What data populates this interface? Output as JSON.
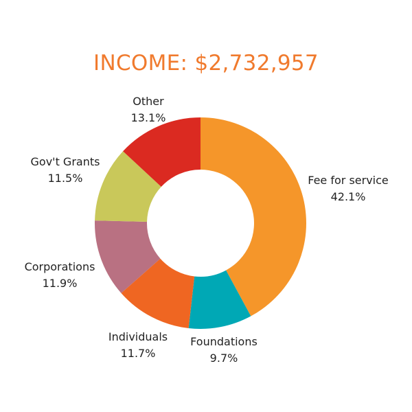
{
  "chart_data": {
    "type": "pie",
    "title": "INCOME: $2,732,957",
    "title_color": "#F07A2D",
    "donut": true,
    "start": "top",
    "direction": "clockwise",
    "slices": [
      {
        "name": "Fee for service",
        "value": 42.1,
        "label": "42.1%",
        "color": "#F5962A"
      },
      {
        "name": "Foundations",
        "value": 9.7,
        "label": "9.7%",
        "color": "#00A8B5"
      },
      {
        "name": "Individuals",
        "value": 11.7,
        "label": "11.7%",
        "color": "#EF6622"
      },
      {
        "name": "Corporations",
        "value": 11.9,
        "label": "11.9%",
        "color": "#B97182"
      },
      {
        "name": "Gov't Grants",
        "value": 11.5,
        "label": "11.5%",
        "color": "#C9C85A"
      },
      {
        "name": "Other",
        "value": 13.1,
        "label": "13.1%",
        "color": "#DB2A21"
      }
    ]
  }
}
